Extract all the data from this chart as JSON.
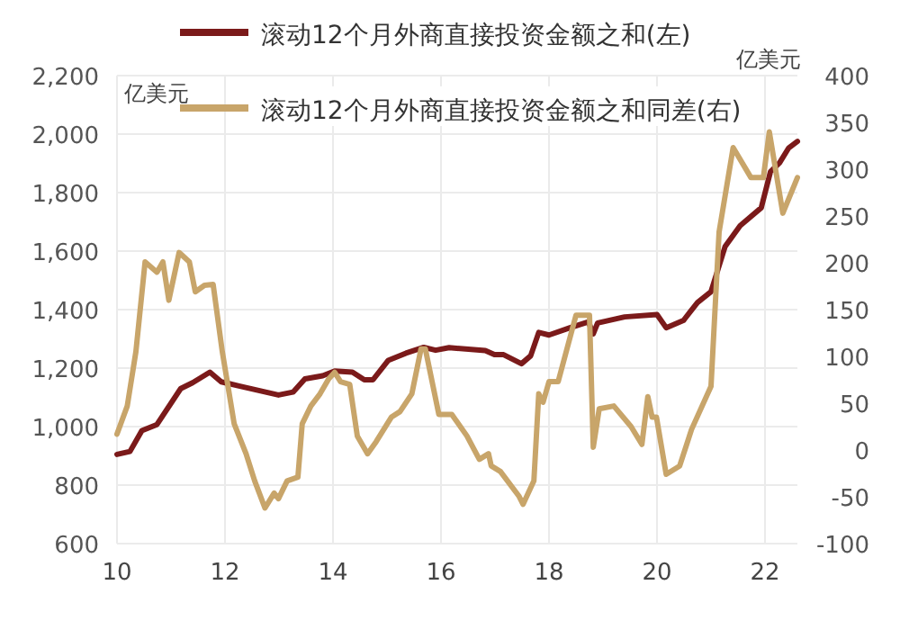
{
  "chart_data": {
    "type": "line",
    "xlim": [
      10,
      22.6
    ],
    "xticks": [
      10,
      12,
      14,
      16,
      18,
      20,
      22
    ],
    "ylim": [
      600,
      2200
    ],
    "yticks": [
      {
        "value": 600,
        "label": "600"
      },
      {
        "value": 800,
        "label": "800"
      },
      {
        "value": 1000,
        "label": "1,000"
      },
      {
        "value": 1200,
        "label": "1,200"
      },
      {
        "value": 1400,
        "label": "1,400"
      },
      {
        "value": 1600,
        "label": "1,600"
      },
      {
        "value": 1800,
        "label": "1,800"
      },
      {
        "value": 2000,
        "label": "2,000"
      },
      {
        "value": 2200,
        "label": "2,200"
      }
    ],
    "y2lim": [
      -100,
      400
    ],
    "y2ticks": [
      -100,
      -50,
      0,
      50,
      100,
      150,
      200,
      250,
      300,
      350,
      400
    ],
    "ylabel": "亿美元",
    "y2label": "亿美元",
    "grid": true,
    "legend": "top",
    "line_style": "solid",
    "series": [
      {
        "name": "滚动12个月外商直接投资金额之和(左)",
        "color": "#7b1a1a",
        "x": [
          10,
          10.24,
          10.46,
          10.74,
          11.18,
          11.4,
          11.72,
          11.93,
          12.26,
          12.99,
          13.26,
          13.48,
          13.81,
          14.03,
          14.36,
          14.58,
          14.74,
          15.02,
          15.35,
          15.68,
          15.9,
          16.15,
          16.82,
          16.99,
          17.16,
          17.49,
          17.66,
          17.81,
          18,
          18.39,
          18.73,
          18.82,
          18.9,
          19.4,
          20,
          20.17,
          20.49,
          20.75,
          21,
          21.26,
          21.54,
          21.93,
          22.1,
          22.27,
          22.44,
          22.6
        ],
        "values": [
          905,
          915,
          986,
          1007,
          1130,
          1150,
          1186,
          1153,
          1139,
          1108,
          1118,
          1163,
          1174,
          1190,
          1186,
          1160,
          1160,
          1226,
          1251,
          1271,
          1261,
          1270,
          1260,
          1246,
          1246,
          1215,
          1242,
          1322,
          1313,
          1338,
          1358,
          1317,
          1354,
          1375,
          1383,
          1338,
          1363,
          1424,
          1461,
          1615,
          1687,
          1748,
          1871,
          1902,
          1953,
          1975
        ]
      },
      {
        "name": "滚动12个月外商直接投资金额之和同差(右)",
        "color": "#c8a56a",
        "axis": "y2",
        "x": [
          10,
          10.19,
          10.35,
          10.52,
          10.74,
          10.85,
          10.96,
          11.15,
          11.34,
          11.45,
          11.62,
          11.78,
          11.95,
          12.17,
          12.39,
          12.55,
          12.74,
          12.91,
          12.99,
          13.15,
          13.35,
          13.43,
          13.59,
          13.76,
          13.92,
          14.03,
          14.14,
          14.31,
          14.45,
          14.64,
          14.8,
          15.08,
          15.24,
          15.46,
          15.63,
          15.71,
          15.96,
          16.2,
          16.48,
          16.71,
          16.88,
          16.93,
          17.1,
          17.44,
          17.52,
          17.72,
          17.81,
          17.89,
          18,
          18.17,
          18.5,
          18.61,
          18.75,
          18.82,
          18.93,
          19.2,
          19.52,
          19.72,
          19.83,
          19.91,
          19.99,
          20.17,
          20.42,
          20.64,
          21,
          21.15,
          21.41,
          21.74,
          21.97,
          22.08,
          22.33,
          22.6
        ],
        "values": [
          17,
          47,
          105,
          201,
          190,
          201,
          160,
          211,
          201,
          169,
          176,
          177,
          105,
          28,
          -4,
          -33,
          -62,
          -46,
          -52,
          -33,
          -29,
          28,
          47,
          60,
          76,
          83,
          73,
          70,
          15,
          -4,
          9,
          35,
          41,
          60,
          108,
          108,
          38,
          38,
          15,
          -10,
          -4,
          -17,
          -23,
          -49,
          -58,
          -33,
          60,
          51,
          73,
          73,
          144,
          144,
          144,
          3,
          44,
          47,
          25,
          6,
          57,
          35,
          35,
          -26,
          -17,
          22,
          68,
          233,
          323,
          291,
          291,
          340,
          253,
          291
        ]
      }
    ]
  }
}
